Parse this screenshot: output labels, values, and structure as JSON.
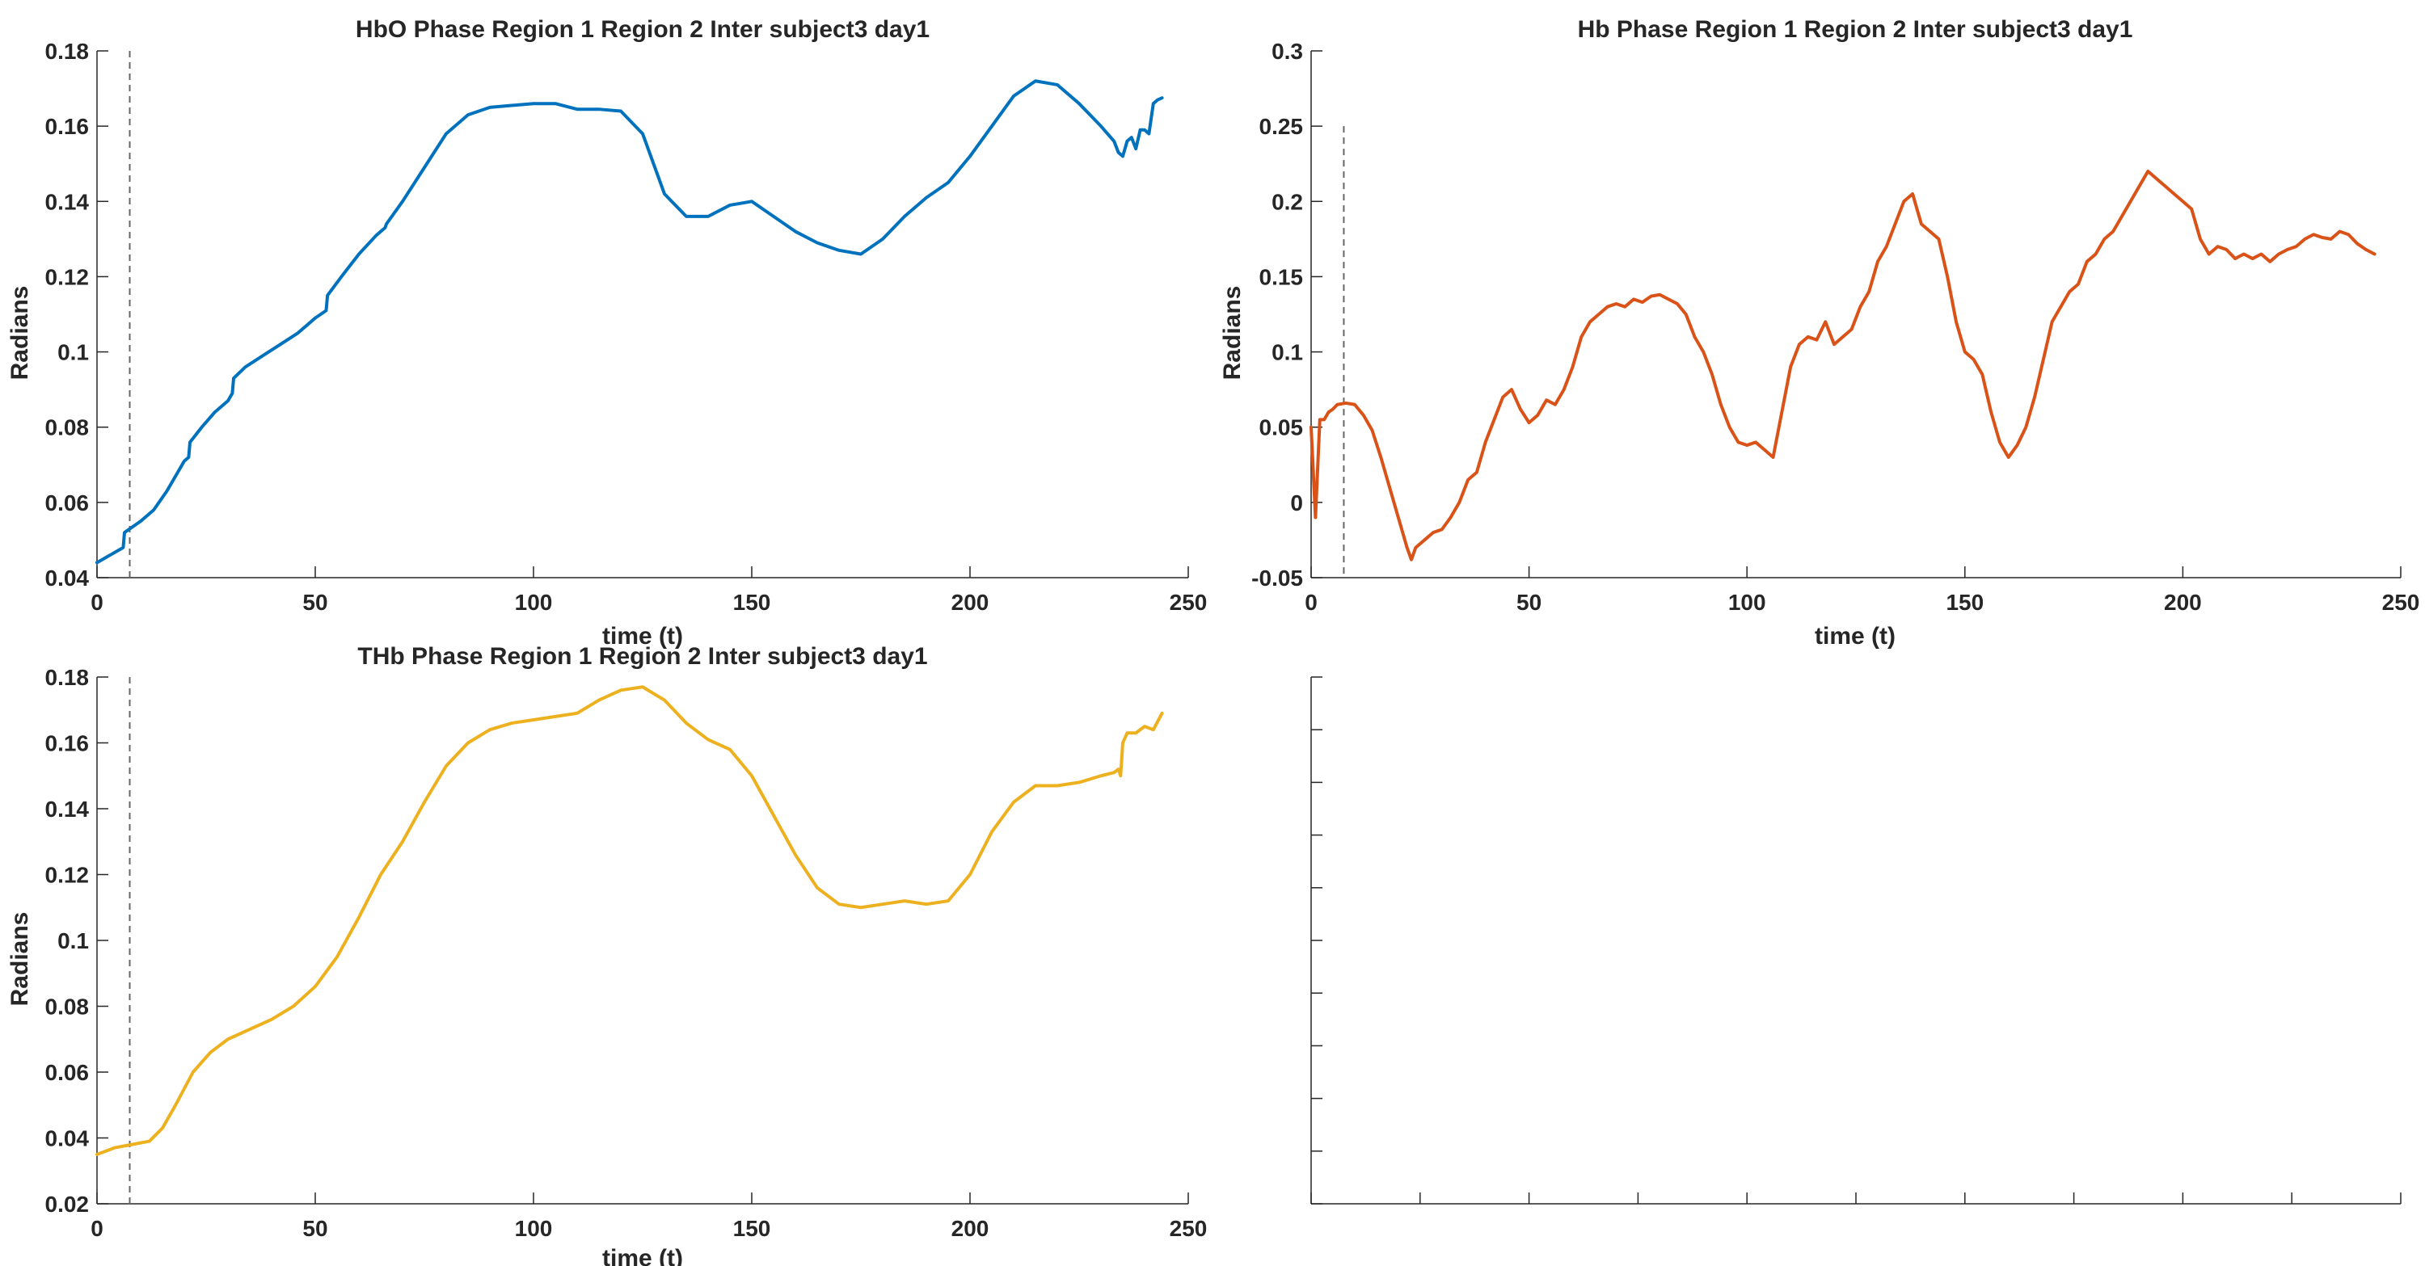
{
  "chart_data": [
    {
      "type": "line",
      "title": "HbO Phase Region 1 Region 2 Inter subject3 day1",
      "xlabel": "time (t)",
      "ylabel": "Radians",
      "xlim": [
        0,
        250
      ],
      "ylim": [
        0.04,
        0.18
      ],
      "xticks": [
        "0",
        "50",
        "100",
        "150",
        "200",
        "250"
      ],
      "yticks": [
        "0.04",
        "0.06",
        "0.08",
        "0.1",
        "0.12",
        "0.14",
        "0.16",
        "0.18"
      ],
      "vline_x": 7.5,
      "color": "#0072BD",
      "series": [
        {
          "x": [
            0,
            3,
            6,
            6.3,
            10,
            13,
            16,
            18,
            20,
            21,
            21.3,
            24,
            27,
            30,
            31,
            31.3,
            34,
            38,
            42,
            46,
            50,
            52.5,
            52.8,
            56,
            60,
            64,
            66,
            66.3,
            70,
            75,
            80,
            85,
            90,
            95,
            100,
            105,
            110,
            115,
            120,
            125,
            130,
            135,
            140,
            145,
            150,
            155,
            160,
            165,
            170,
            175,
            180,
            185,
            190,
            195,
            200,
            205,
            210,
            215,
            220,
            225,
            230,
            233,
            234,
            235,
            236,
            237,
            238,
            239,
            240,
            241,
            242,
            243,
            244
          ],
          "y": [
            0.044,
            0.046,
            0.048,
            0.052,
            0.055,
            0.058,
            0.063,
            0.067,
            0.071,
            0.072,
            0.076,
            0.08,
            0.084,
            0.087,
            0.089,
            0.093,
            0.096,
            0.099,
            0.102,
            0.105,
            0.109,
            0.111,
            0.115,
            0.12,
            0.126,
            0.131,
            0.133,
            0.134,
            0.14,
            0.149,
            0.158,
            0.163,
            0.165,
            0.1655,
            0.166,
            0.166,
            0.1645,
            0.1645,
            0.164,
            0.158,
            0.142,
            0.136,
            0.136,
            0.139,
            0.14,
            0.136,
            0.132,
            0.129,
            0.127,
            0.126,
            0.13,
            0.136,
            0.141,
            0.145,
            0.152,
            0.16,
            0.168,
            0.172,
            0.171,
            0.166,
            0.16,
            0.156,
            0.153,
            0.152,
            0.156,
            0.157,
            0.154,
            0.159,
            0.159,
            0.158,
            0.166,
            0.167,
            0.1675
          ]
        }
      ]
    },
    {
      "type": "line",
      "title": "Hb Phase Region 1 Region 2 Inter subject3 day1",
      "xlabel": "time (t)",
      "ylabel": "Radians",
      "xlim": [
        0,
        250
      ],
      "ylim": [
        -0.05,
        0.3
      ],
      "xticks": [
        "0",
        "50",
        "100",
        "150",
        "200",
        "250"
      ],
      "yticks": [
        "-0.05",
        "0",
        "0.05",
        "0.1",
        "0.15",
        "0.2",
        "0.25",
        "0.3"
      ],
      "vline_x": 7.5,
      "vline_ymax": 0.25,
      "color": "#D95319",
      "series": [
        {
          "x": [
            0,
            1,
            2,
            3,
            4,
            5,
            6,
            8,
            10,
            12,
            14,
            16,
            18,
            20,
            22,
            23,
            24,
            26,
            28,
            30,
            32,
            34,
            36,
            38,
            40,
            42,
            44,
            46,
            48,
            50,
            52,
            54,
            56,
            58,
            60,
            62,
            64,
            66,
            68,
            70,
            72,
            74,
            76,
            78,
            80,
            82,
            84,
            86,
            88,
            90,
            92,
            94,
            96,
            98,
            100,
            102,
            104,
            106,
            108,
            110,
            112,
            114,
            116,
            118,
            120,
            122,
            124,
            126,
            128,
            130,
            132,
            134,
            136,
            138,
            140,
            142,
            144,
            146,
            148,
            150,
            152,
            154,
            156,
            158,
            160,
            162,
            164,
            166,
            168,
            170,
            172,
            174,
            176,
            178,
            180,
            182,
            184,
            186,
            188,
            190,
            192,
            194,
            196,
            198,
            200,
            202,
            204,
            206,
            208,
            210,
            212,
            214,
            216,
            218,
            220,
            222,
            224,
            226,
            228,
            230,
            232,
            234,
            236,
            238,
            240,
            242,
            244
          ],
          "y": [
            0.05,
            -0.01,
            0.055,
            0.055,
            0.06,
            0.062,
            0.065,
            0.066,
            0.065,
            0.058,
            0.048,
            0.03,
            0.01,
            -0.01,
            -0.03,
            -0.038,
            -0.03,
            -0.025,
            -0.02,
            -0.018,
            -0.01,
            0.0,
            0.015,
            0.02,
            0.04,
            0.055,
            0.07,
            0.075,
            0.062,
            0.053,
            0.058,
            0.068,
            0.065,
            0.075,
            0.09,
            0.11,
            0.12,
            0.125,
            0.13,
            0.132,
            0.13,
            0.135,
            0.133,
            0.137,
            0.138,
            0.135,
            0.132,
            0.125,
            0.11,
            0.1,
            0.085,
            0.065,
            0.05,
            0.04,
            0.038,
            0.04,
            0.035,
            0.03,
            0.06,
            0.09,
            0.105,
            0.11,
            0.108,
            0.12,
            0.105,
            0.11,
            0.115,
            0.13,
            0.14,
            0.16,
            0.17,
            0.185,
            0.2,
            0.205,
            0.185,
            0.18,
            0.175,
            0.15,
            0.12,
            0.1,
            0.095,
            0.085,
            0.06,
            0.04,
            0.03,
            0.038,
            0.05,
            0.07,
            0.095,
            0.12,
            0.13,
            0.14,
            0.145,
            0.16,
            0.165,
            0.175,
            0.18,
            0.19,
            0.2,
            0.21,
            0.22,
            0.215,
            0.21,
            0.205,
            0.2,
            0.195,
            0.175,
            0.165,
            0.17,
            0.168,
            0.162,
            0.165,
            0.162,
            0.165,
            0.16,
            0.165,
            0.168,
            0.17,
            0.175,
            0.178,
            0.176,
            0.175,
            0.18,
            0.178,
            0.172,
            0.168,
            0.165
          ]
        }
      ]
    },
    {
      "type": "line",
      "title": "THb Phase Region 1 Region 2 Inter subject3 day1",
      "xlabel": "time (t)",
      "ylabel": "Radians",
      "xlim": [
        0,
        250
      ],
      "ylim": [
        0.02,
        0.18
      ],
      "xticks": [
        "0",
        "50",
        "100",
        "150",
        "200",
        "250"
      ],
      "yticks": [
        "0.02",
        "0.04",
        "0.06",
        "0.08",
        "0.1",
        "0.12",
        "0.14",
        "0.16",
        "0.18"
      ],
      "vline_x": 7.5,
      "color": "#EDB120",
      "series": [
        {
          "x": [
            0,
            4,
            8,
            12,
            15,
            18,
            22,
            26,
            30,
            35,
            40,
            45,
            50,
            55,
            60,
            65,
            70,
            75,
            80,
            85,
            90,
            95,
            100,
            105,
            110,
            115,
            120,
            125,
            130,
            135,
            140,
            145,
            150,
            155,
            160,
            165,
            170,
            175,
            180,
            185,
            190,
            195,
            200,
            205,
            210,
            215,
            220,
            225,
            230,
            233,
            234,
            234.5,
            235,
            236,
            238,
            240,
            242,
            244
          ],
          "y": [
            0.035,
            0.037,
            0.038,
            0.039,
            0.043,
            0.05,
            0.06,
            0.066,
            0.07,
            0.073,
            0.076,
            0.08,
            0.086,
            0.095,
            0.107,
            0.12,
            0.13,
            0.142,
            0.153,
            0.16,
            0.164,
            0.166,
            0.167,
            0.168,
            0.169,
            0.173,
            0.176,
            0.177,
            0.173,
            0.166,
            0.161,
            0.158,
            0.15,
            0.138,
            0.126,
            0.116,
            0.111,
            0.11,
            0.111,
            0.112,
            0.111,
            0.112,
            0.12,
            0.133,
            0.142,
            0.147,
            0.147,
            0.148,
            0.15,
            0.151,
            0.152,
            0.15,
            0.16,
            0.163,
            0.163,
            0.165,
            0.164,
            0.169
          ]
        }
      ]
    },
    {
      "type": "line",
      "title": "",
      "xlabel": "",
      "ylabel": "",
      "series": []
    }
  ]
}
